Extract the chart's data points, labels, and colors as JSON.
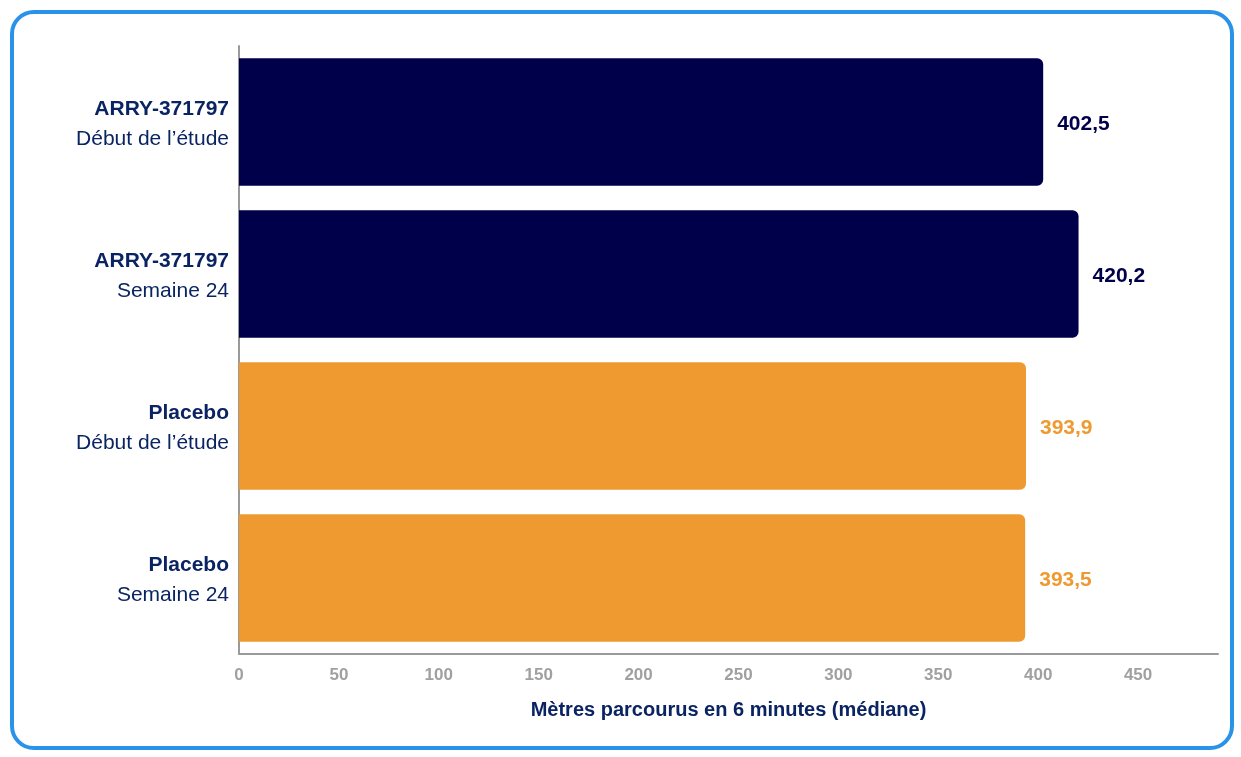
{
  "chart_data": {
    "type": "bar",
    "orientation": "horizontal",
    "xlabel": "Mètres parcourus en 6 minutes (médiane)",
    "categories": [
      "ARRY-371797\nDébut de l’étude",
      "ARRY-371797\nSemaine 24",
      "Placebo\nDébut de l’étude",
      "Placebo\nSemaine 24"
    ],
    "values": [
      402.5,
      420.2,
      393.9,
      393.5
    ],
    "value_labels": [
      "402,5",
      "420,2",
      "393,9",
      "393,5"
    ],
    "colors": [
      "#00004a",
      "#00004a",
      "#ef9a31",
      "#ef9a31"
    ],
    "xlim": [
      0,
      490
    ],
    "xticks": [
      0,
      50,
      100,
      150,
      200,
      250,
      300,
      350,
      400,
      450
    ],
    "grid": false
  }
}
